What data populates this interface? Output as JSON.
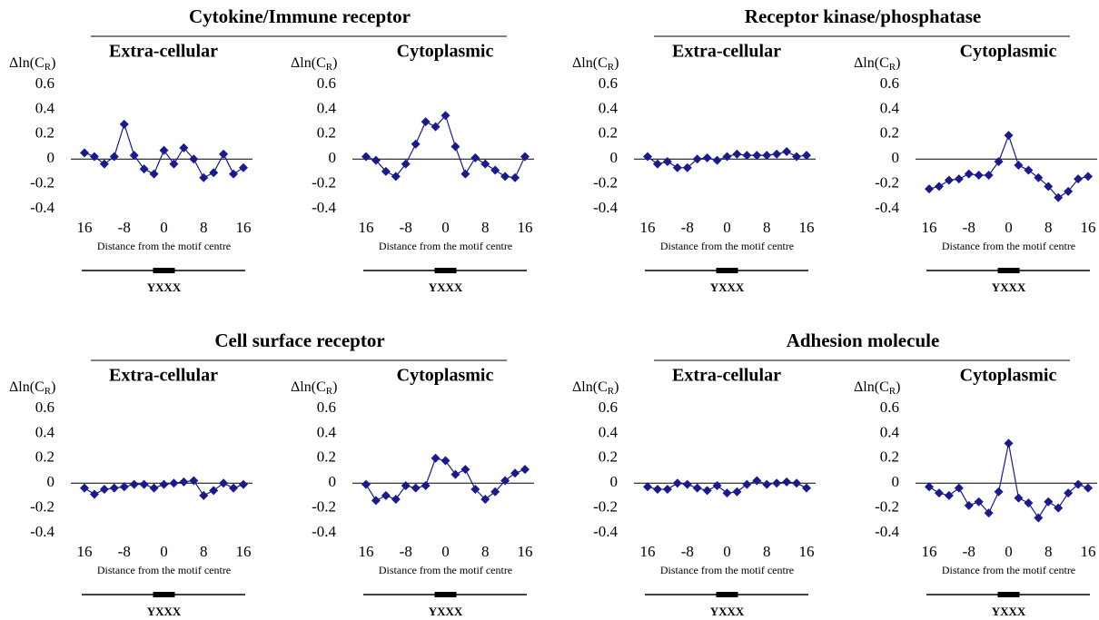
{
  "group_titles": [
    "Cytokine/Immune receptor",
    "Receptor kinase/phosphatase",
    "Cell surface receptor",
    "Adhesion molecule"
  ],
  "chart_data": [
    {
      "type": "line",
      "title": "Extra-cellular",
      "ylabel": {
        "base": "Δln(C",
        "sub": "R",
        "end": ")"
      },
      "xlabel": "Distance from the motif centre",
      "motif": "YXXX",
      "color": "#1a1a8c",
      "x": [
        -16,
        -14,
        -12,
        -10,
        -8,
        -6,
        -4,
        -2,
        0,
        2,
        4,
        6,
        8,
        10,
        12,
        14,
        16
      ],
      "values": [
        0.05,
        0.02,
        -0.04,
        0.02,
        0.28,
        0.03,
        -0.08,
        -0.12,
        0.07,
        -0.04,
        0.09,
        0.0,
        -0.15,
        -0.11,
        0.04,
        -0.12,
        -0.07
      ],
      "xlim": [
        -16,
        16
      ],
      "xticks": [
        {
          "value": -16,
          "label": "16"
        },
        -8,
        0,
        8,
        16
      ],
      "ylim": [
        -0.4,
        0.6
      ],
      "yticks": [
        0.6,
        0.4,
        0.2,
        0,
        -0.2,
        -0.4
      ]
    },
    {
      "type": "line",
      "title": "Cytoplasmic",
      "ylabel": {
        "base": "Δln(C",
        "sub": "R",
        "end": ")"
      },
      "xlabel": "Distance from the motif centre",
      "motif": "YXXX",
      "color": "#1a1a8c",
      "x": [
        -16,
        -14,
        -12,
        -10,
        -8,
        -6,
        -4,
        -2,
        0,
        2,
        4,
        6,
        8,
        10,
        12,
        14,
        16
      ],
      "values": [
        0.02,
        -0.01,
        -0.1,
        -0.14,
        -0.04,
        0.12,
        0.3,
        0.26,
        0.35,
        0.1,
        -0.12,
        0.01,
        -0.04,
        -0.09,
        -0.14,
        -0.15,
        0.02
      ],
      "xlim": [
        -16,
        16
      ],
      "xticks": [
        {
          "value": -16,
          "label": "16"
        },
        -8,
        0,
        8,
        16
      ],
      "ylim": [
        -0.4,
        0.6
      ],
      "yticks": [
        0.6,
        0.4,
        0.2,
        0,
        -0.2,
        -0.4
      ]
    },
    {
      "type": "line",
      "title": "Extra-cellular",
      "ylabel": {
        "base": "Δln(C",
        "sub": "R",
        "end": ")"
      },
      "xlabel": "Distance from the motif centre",
      "motif": "YXXX",
      "color": "#1a1a8c",
      "x": [
        -16,
        -14,
        -12,
        -10,
        -8,
        -6,
        -4,
        -2,
        0,
        2,
        4,
        6,
        8,
        10,
        12,
        14,
        16
      ],
      "values": [
        0.02,
        -0.04,
        -0.02,
        -0.07,
        -0.07,
        0.0,
        0.01,
        -0.01,
        0.02,
        0.04,
        0.03,
        0.03,
        0.03,
        0.04,
        0.06,
        0.02,
        0.03
      ],
      "xlim": [
        -16,
        16
      ],
      "xticks": [
        {
          "value": -16,
          "label": "16"
        },
        -8,
        0,
        8,
        16
      ],
      "ylim": [
        -0.4,
        0.6
      ],
      "yticks": [
        0.6,
        0.4,
        0.2,
        0,
        -0.2,
        -0.4
      ]
    },
    {
      "type": "line",
      "title": "Cytoplasmic",
      "ylabel": {
        "base": "Δln(C",
        "sub": "R",
        "end": ")"
      },
      "xlabel": "Distance from the motif centre",
      "motif": "YXXX",
      "color": "#1a1a8c",
      "x": [
        -16,
        -14,
        -12,
        -10,
        -8,
        -6,
        -4,
        -2,
        0,
        2,
        4,
        6,
        8,
        10,
        12,
        14,
        16
      ],
      "values": [
        -0.24,
        -0.22,
        -0.17,
        -0.16,
        -0.12,
        -0.13,
        -0.13,
        -0.02,
        0.19,
        -0.05,
        -0.09,
        -0.15,
        -0.22,
        -0.31,
        -0.26,
        -0.16,
        -0.14
      ],
      "xlim": [
        -16,
        16
      ],
      "xticks": [
        {
          "value": -16,
          "label": "16"
        },
        -8,
        0,
        8,
        16
      ],
      "ylim": [
        -0.4,
        0.6
      ],
      "yticks": [
        0.6,
        0.4,
        0.2,
        0,
        -0.2,
        -0.4
      ]
    },
    {
      "type": "line",
      "title": "Extra-cellular",
      "ylabel": {
        "base": "Δln(C",
        "sub": "R",
        "end": ")"
      },
      "xlabel": "Distance from the motif centre",
      "motif": "YXXX",
      "color": "#1a1a8c",
      "x": [
        -16,
        -14,
        -12,
        -10,
        -8,
        -6,
        -4,
        -2,
        0,
        2,
        4,
        6,
        8,
        10,
        12,
        14,
        16
      ],
      "values": [
        -0.04,
        -0.09,
        -0.05,
        -0.04,
        -0.03,
        -0.01,
        -0.01,
        -0.04,
        -0.01,
        0.0,
        0.01,
        0.02,
        -0.1,
        -0.06,
        0.0,
        -0.04,
        -0.01
      ],
      "xlim": [
        -16,
        16
      ],
      "xticks": [
        {
          "value": -16,
          "label": "16"
        },
        -8,
        0,
        8,
        16
      ],
      "ylim": [
        -0.4,
        0.6
      ],
      "yticks": [
        0.6,
        0.4,
        0.2,
        0,
        -0.2,
        -0.4
      ]
    },
    {
      "type": "line",
      "title": "Cytoplasmic",
      "ylabel": {
        "base": "Δln(C",
        "sub": "R",
        "end": ")"
      },
      "xlabel": "Distance from the motif centre",
      "motif": "YXXX",
      "color": "#1a1a8c",
      "x": [
        -16,
        -14,
        -12,
        -10,
        -8,
        -6,
        -4,
        -2,
        0,
        2,
        4,
        6,
        8,
        10,
        12,
        14,
        16
      ],
      "values": [
        -0.01,
        -0.14,
        -0.1,
        -0.13,
        -0.02,
        -0.04,
        -0.02,
        0.2,
        0.18,
        0.07,
        0.11,
        -0.05,
        -0.13,
        -0.07,
        0.02,
        0.08,
        0.11
      ],
      "xlim": [
        -16,
        16
      ],
      "xticks": [
        {
          "value": -16,
          "label": "16"
        },
        -8,
        0,
        8,
        16
      ],
      "ylim": [
        -0.4,
        0.6
      ],
      "yticks": [
        0.6,
        0.4,
        0.2,
        0,
        -0.2,
        -0.4
      ]
    },
    {
      "type": "line",
      "title": "Extra-cellular",
      "ylabel": {
        "base": "Δln(C",
        "sub": "R",
        "end": ")"
      },
      "xlabel": "Distance from the motif centre",
      "motif": "YXXX",
      "color": "#1a1a8c",
      "x": [
        -16,
        -14,
        -12,
        -10,
        -8,
        -6,
        -4,
        -2,
        0,
        2,
        4,
        6,
        8,
        10,
        12,
        14,
        16
      ],
      "values": [
        -0.03,
        -0.05,
        -0.05,
        0.0,
        -0.01,
        -0.04,
        -0.06,
        -0.02,
        -0.08,
        -0.07,
        -0.01,
        0.02,
        -0.01,
        0.0,
        0.01,
        0.0,
        -0.04
      ],
      "xlim": [
        -16,
        16
      ],
      "xticks": [
        {
          "value": -16,
          "label": "16"
        },
        -8,
        0,
        8,
        16
      ],
      "ylim": [
        -0.4,
        0.6
      ],
      "yticks": [
        0.6,
        0.4,
        0.2,
        0,
        -0.2,
        -0.4
      ]
    },
    {
      "type": "line",
      "title": "Cytoplasmic",
      "ylabel": {
        "base": "Δln(C",
        "sub": "R",
        "end": ")"
      },
      "xlabel": "Distance from the motif centre",
      "motif": "YXXX",
      "color": "#1a1a8c",
      "x": [
        -16,
        -14,
        -12,
        -10,
        -8,
        -6,
        -4,
        -2,
        0,
        2,
        4,
        6,
        8,
        10,
        12,
        14,
        16
      ],
      "values": [
        -0.03,
        -0.08,
        -0.1,
        -0.04,
        -0.18,
        -0.15,
        -0.24,
        -0.07,
        0.32,
        -0.12,
        -0.16,
        -0.28,
        -0.15,
        -0.2,
        -0.08,
        -0.01,
        -0.04
      ],
      "xlim": [
        -16,
        16
      ],
      "xticks": [
        {
          "value": -16,
          "label": "16"
        },
        -8,
        0,
        8,
        16
      ],
      "ylim": [
        -0.4,
        0.6
      ],
      "yticks": [
        0.6,
        0.4,
        0.2,
        0,
        -0.2,
        -0.4
      ]
    }
  ]
}
